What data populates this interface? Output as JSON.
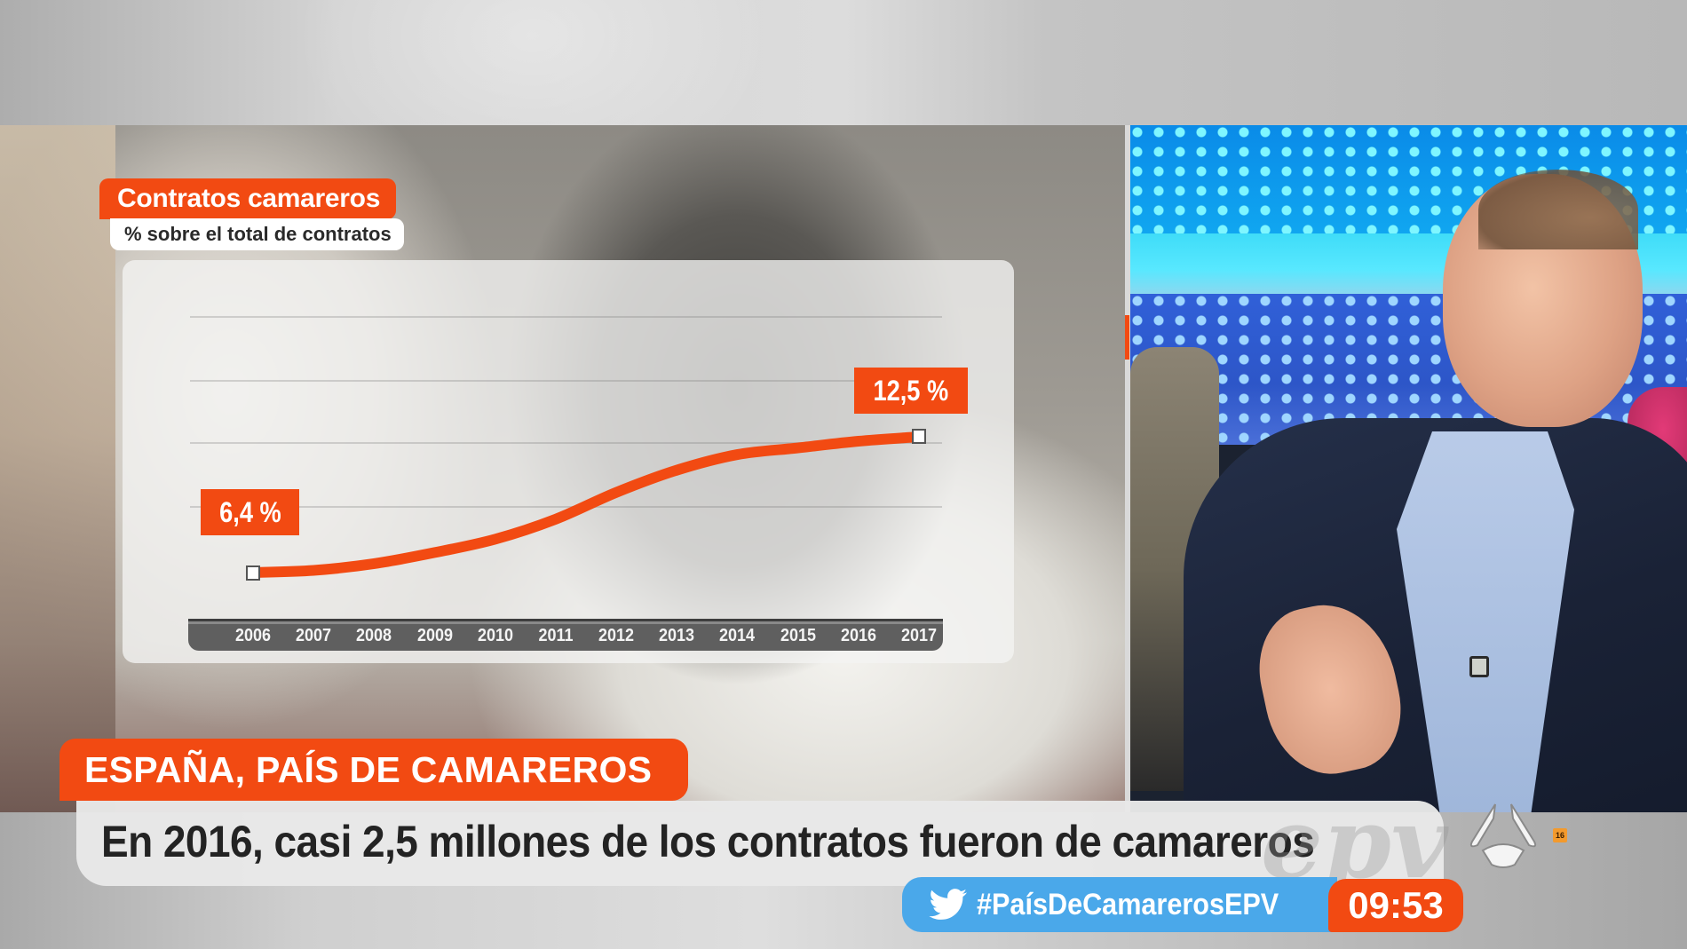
{
  "broadcast": {
    "channel": "Antena 3",
    "program_watermark": "epv",
    "age_rating": "16",
    "clock": "09:53",
    "hashtag": "#PaísDeCamarerosEPV",
    "hashtag_icon": "twitter-bird-icon"
  },
  "lower_third": {
    "tag": "ESPAÑA, PAÍS DE CAMAREROS",
    "headline": "En 2016, casi 2,5 millones de los contratos fueron de camareros"
  },
  "chart_graphic": {
    "title": "Contratos camareros",
    "subtitle": "% sobre el total de contratos",
    "start_label": "6,4 %",
    "end_label": "12,5 %",
    "years": [
      "2006",
      "2007",
      "2008",
      "2009",
      "2010",
      "2011",
      "2012",
      "2013",
      "2014",
      "2015",
      "2016",
      "2017"
    ]
  },
  "colors": {
    "accent_orange": "#f24a12",
    "twitter_blue": "#4aa8ea",
    "headline_bg": "#e8e8e8",
    "axis_bar": "#5f5f5f"
  },
  "chart_data": {
    "type": "line",
    "title": "Contratos camareros",
    "subtitle": "% sobre el total de contratos",
    "xlabel": "",
    "ylabel": "% sobre el total de contratos",
    "categories": [
      "2006",
      "2007",
      "2008",
      "2009",
      "2010",
      "2011",
      "2012",
      "2013",
      "2014",
      "2015",
      "2016",
      "2017"
    ],
    "series": [
      {
        "name": "Contratos camareros (%)",
        "color": "#f24a12",
        "values": [
          6.4,
          6.5,
          6.8,
          7.3,
          7.9,
          8.8,
          10.0,
          11.0,
          11.7,
          12.0,
          12.3,
          12.5
        ]
      }
    ],
    "annotations": [
      {
        "x": "2006",
        "label": "6,4 %"
      },
      {
        "x": "2017",
        "label": "12,5 %"
      }
    ],
    "grid": true,
    "y_axis_visible": false,
    "legend": "none"
  }
}
